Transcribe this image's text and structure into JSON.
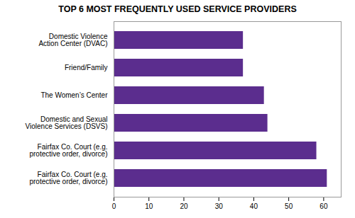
{
  "chart_data": {
    "type": "bar",
    "orientation": "horizontal",
    "title": "TOP 6 MOST FREQUENTLY USED SERVICE PROVIDERS",
    "categories": [
      "Domestic Violence\nAction Center (DVAC)",
      "Friend/Family",
      "The Women’s Center",
      "Domestic and Sexual\nViolence Services (DSVS)",
      "Fairfax Co. Court (e.g.\nprotective order, divorce)",
      "Fairfax Co. Court (e.g.\nprotective order, divorce)"
    ],
    "values": [
      37,
      37,
      43,
      44,
      58,
      61
    ],
    "color": "#5b2d8e",
    "xlim": [
      0,
      65
    ],
    "xticks": [
      0,
      10,
      20,
      30,
      40,
      50,
      60
    ]
  }
}
